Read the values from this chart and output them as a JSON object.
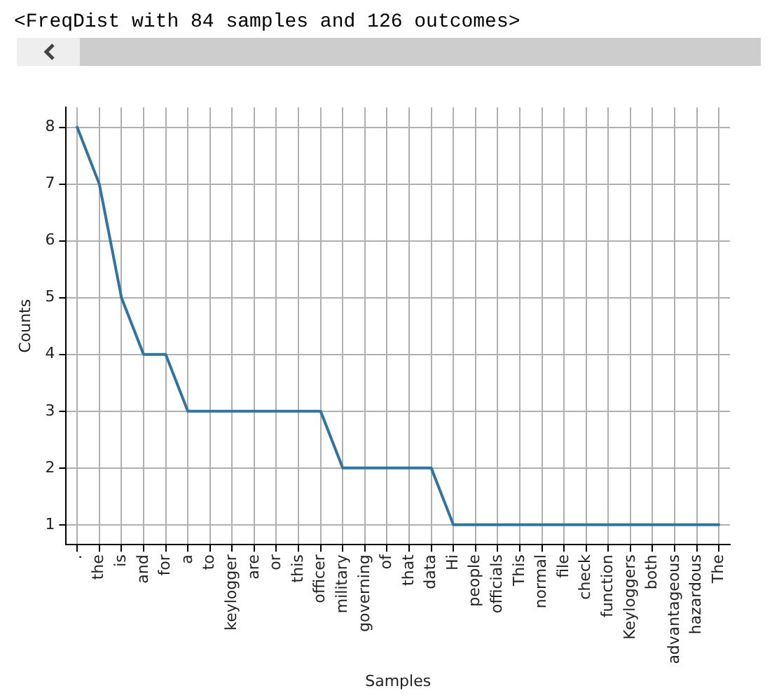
{
  "chart_data": {
    "type": "line",
    "annotations": [
      "<FreqDist with 84 samples and 126 outcomes>"
    ],
    "xlabel": "Samples",
    "ylabel": "Counts",
    "categories": [
      ".",
      "the",
      "is",
      "and",
      "for",
      "a",
      "to",
      "keylogger",
      "are",
      "or",
      "this",
      "officer",
      "military",
      "governing",
      "of",
      "that",
      "data",
      "Hi",
      "people",
      "officials",
      "This",
      "normal",
      "file",
      "check",
      "function",
      "Keyloggers",
      "both",
      "advantageous",
      "hazardous",
      "The"
    ],
    "series": [
      {
        "color": "#3274a1",
        "values": [
          8,
          7,
          5,
          4,
          4,
          3,
          3,
          3,
          3,
          3,
          3,
          3,
          2,
          2,
          2,
          2,
          2,
          1,
          1,
          1,
          1,
          1,
          1,
          1,
          1,
          1,
          1,
          1,
          1,
          1
        ]
      }
    ],
    "ylim": [
      0.65,
      8.35
    ],
    "yticks": [
      1,
      2,
      3,
      4,
      5,
      6,
      7,
      8
    ],
    "grid": true,
    "legend": false,
    "marker": "none",
    "line_style": "solid"
  }
}
